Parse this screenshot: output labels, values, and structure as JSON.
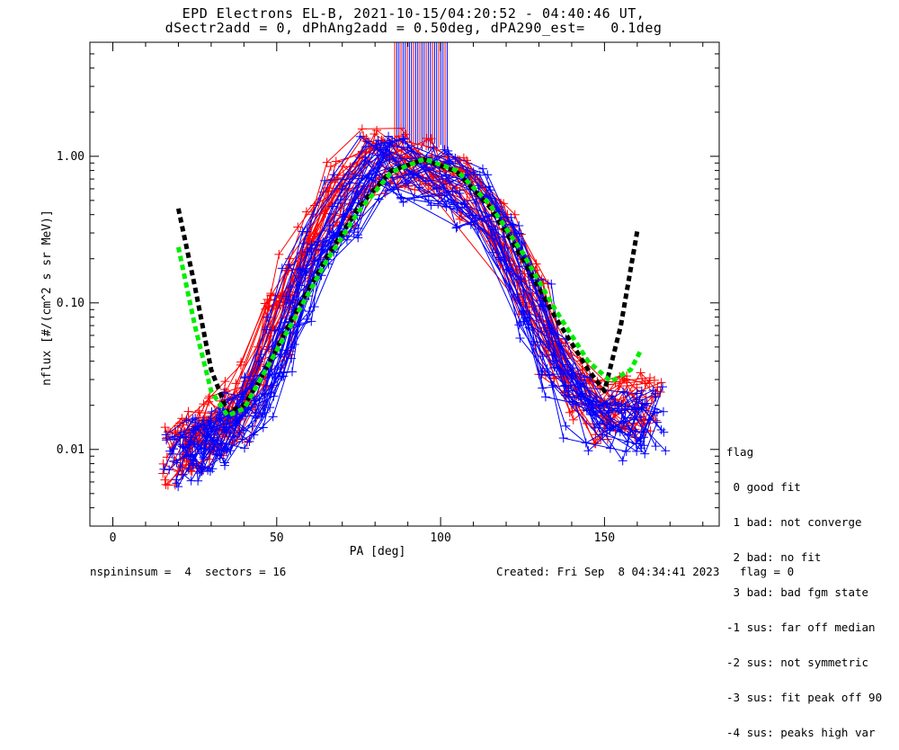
{
  "chart_data": {
    "type": "line",
    "title": "EPD Electrons EL-B, 2021-10-15/04:20:52 - 04:40:46 UT,",
    "subtitle": "dSectr2add = 0, dPhAng2add = 0.50deg, dPA290_est=   0.1deg",
    "xlabel": "PA [deg]",
    "ylabel": "nflux [#/(cm^2 s sr MeV)]",
    "xlim": [
      -7,
      185
    ],
    "ylim": [
      0.003,
      6
    ],
    "yscale": "log",
    "x_ticks": [
      0,
      50,
      100,
      150
    ],
    "x_tick_labels": [
      "0",
      "50",
      "100",
      "150"
    ],
    "y_ticks": [
      0.01,
      0.1,
      1.0
    ],
    "y_tick_labels": [
      "0.01",
      "0.10",
      "1.00"
    ],
    "series": [
      {
        "color": "#ff0000",
        "pa": [
          20,
          24,
          28,
          33,
          38,
          44,
          50,
          56,
          62,
          70,
          80,
          90,
          100,
          110,
          120,
          128,
          135,
          142,
          150,
          158,
          164
        ],
        "base": [
          0.009,
          0.011,
          0.012,
          0.014,
          0.018,
          0.03,
          0.07,
          0.14,
          0.28,
          0.55,
          0.92,
          0.95,
          0.9,
          0.6,
          0.3,
          0.12,
          0.05,
          0.025,
          0.018,
          0.02,
          0.02
        ]
      },
      {
        "color": "#0000ff",
        "pa": [
          20,
          24,
          28,
          33,
          38,
          44,
          50,
          56,
          62,
          70,
          80,
          90,
          100,
          110,
          120,
          128,
          135,
          142,
          150,
          158,
          164
        ],
        "base": [
          0.008,
          0.01,
          0.011,
          0.012,
          0.015,
          0.022,
          0.05,
          0.11,
          0.22,
          0.45,
          0.85,
          0.8,
          0.75,
          0.5,
          0.25,
          0.09,
          0.035,
          0.02,
          0.014,
          0.015,
          0.016
        ]
      }
    ],
    "fit_black": {
      "x": [
        20,
        25,
        30,
        35,
        40,
        45,
        55,
        65,
        75,
        85,
        95,
        105,
        115,
        125,
        135,
        145,
        150,
        155,
        160
      ],
      "y": [
        0.44,
        0.13,
        0.035,
        0.018,
        0.02,
        0.03,
        0.08,
        0.2,
        0.45,
        0.8,
        0.95,
        0.78,
        0.45,
        0.2,
        0.08,
        0.035,
        0.025,
        0.07,
        0.31
      ]
    },
    "fit_green": {
      "x": [
        20,
        25,
        30,
        35,
        40,
        45,
        55,
        65,
        75,
        85,
        95,
        105,
        115,
        125,
        135,
        145,
        152,
        158,
        161
      ],
      "y": [
        0.24,
        0.07,
        0.025,
        0.017,
        0.019,
        0.03,
        0.075,
        0.19,
        0.42,
        0.78,
        0.96,
        0.8,
        0.47,
        0.22,
        0.09,
        0.04,
        0.029,
        0.035,
        0.047
      ]
    },
    "spikes": {
      "x_range": [
        86,
        102
      ],
      "color_a": "#0000ff",
      "color_b": "#ff0000"
    },
    "legend": {
      "title": "flag",
      "entries": [
        " 0 good fit",
        " 1 bad: not converge",
        " 2 bad: no fit",
        " 3 bad: bad fgm state",
        "-1 sus: far off median",
        "-2 sus: not symmetric",
        "-3 sus: fit peak off 90",
        "-4 sus: peaks high var"
      ]
    },
    "colors": {
      "red": "#ff0000",
      "blue": "#0000ff",
      "black_fit": "#000000",
      "green_fit": "#00ee00"
    }
  },
  "footer": {
    "left": "nspininsum =  4  sectors = 16",
    "right": "Created: Fri Sep  8 04:34:41 2023   flag = 0"
  }
}
